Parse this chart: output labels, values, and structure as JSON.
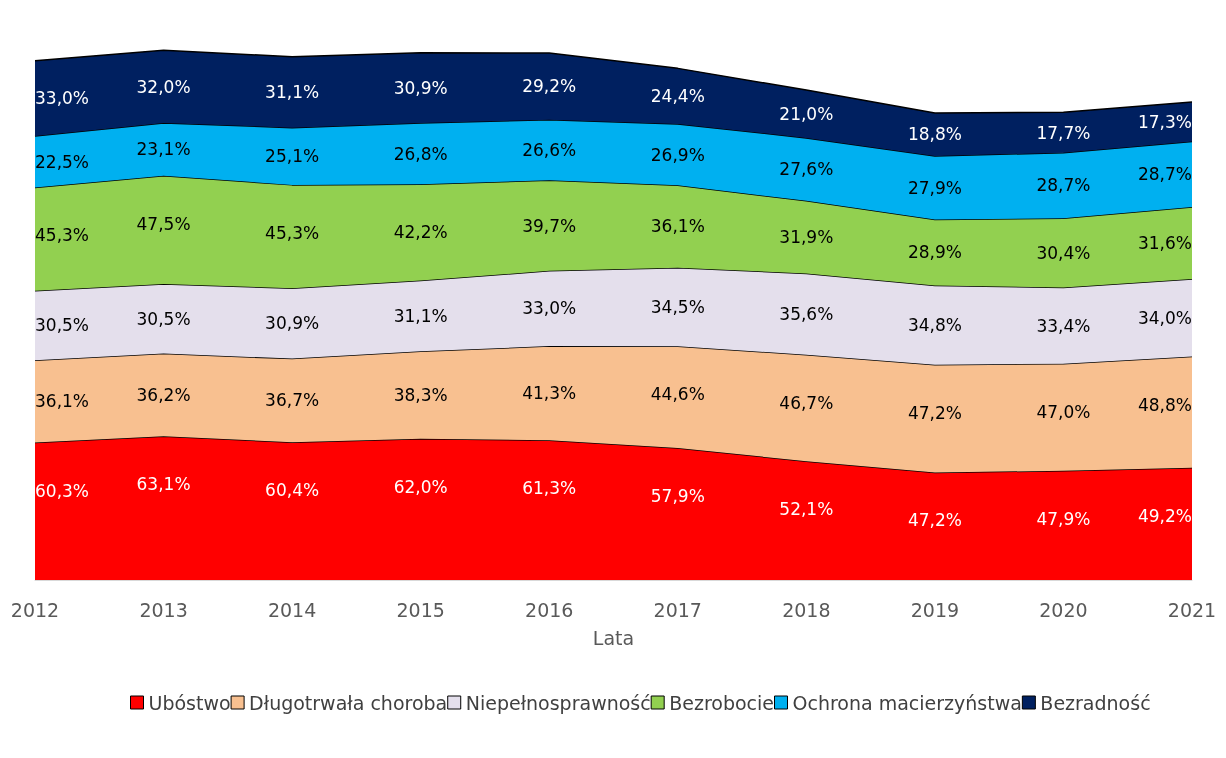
{
  "chart_data": {
    "type": "area",
    "stacked": true,
    "xlabel": "Lata",
    "legend": "bottom",
    "data_labels": false,
    "categories": [
      "2012",
      "2013",
      "2014",
      "2015",
      "2016",
      "2017",
      "2018",
      "2019",
      "2020",
      "2021"
    ],
    "series": [
      {
        "name": "Ubóstwo",
        "color": "#ff0000",
        "values": [
          60.3,
          63.1,
          60.4,
          62.0,
          61.3,
          57.9,
          52.1,
          47.2,
          47.9,
          49.2
        ],
        "value_labels": [
          "60,3%",
          "63,1%",
          "60,4%",
          "62,0%",
          "61,3%",
          "57,9%",
          "52,1%",
          "47,2%",
          "47,9%",
          "49,2%"
        ]
      },
      {
        "name": "Długotrwała choroba",
        "color": "#f8c090",
        "values": [
          36.1,
          36.2,
          36.7,
          38.3,
          41.3,
          44.6,
          46.7,
          47.2,
          47.0,
          48.8
        ],
        "value_labels": [
          "36,1%",
          "36,2%",
          "36,7%",
          "38,3%",
          "41,3%",
          "44,6%",
          "46,7%",
          "47,2%",
          "47,0%",
          "48,8%"
        ]
      },
      {
        "name": "Niepełnosprawność",
        "color": "#e4dfec",
        "values": [
          30.5,
          30.5,
          30.9,
          31.1,
          33.0,
          34.5,
          35.6,
          34.8,
          33.4,
          34.0
        ],
        "value_labels": [
          "30,5%",
          "30,5%",
          "30,9%",
          "31,1%",
          "33,0%",
          "34,5%",
          "35,6%",
          "34,8%",
          "33,4%",
          "34,0%"
        ]
      },
      {
        "name": "Bezrobocie",
        "color": "#92d050",
        "values": [
          45.3,
          47.5,
          45.3,
          42.2,
          39.7,
          36.1,
          31.9,
          28.9,
          30.4,
          31.6
        ],
        "value_labels": [
          "45,3%",
          "47,5%",
          "45,3%",
          "42,2%",
          "39,7%",
          "36,1%",
          "31,9%",
          "28,9%",
          "30,4%",
          "31,6%"
        ]
      },
      {
        "name": "Ochrona macierzyństwa",
        "color": "#00b0f0",
        "values": [
          22.5,
          23.1,
          25.1,
          26.8,
          26.6,
          26.9,
          27.6,
          27.9,
          28.7,
          28.7
        ],
        "value_labels": [
          "22,5%",
          "23,1%",
          "25,1%",
          "26,8%",
          "26,6%",
          "26,9%",
          "27,6%",
          "27,9%",
          "28,7%",
          "28,7%"
        ]
      },
      {
        "name": "Bezradność",
        "color": "#002060",
        "values": [
          33.0,
          32.0,
          31.1,
          30.9,
          29.2,
          24.4,
          21.0,
          18.8,
          17.7,
          17.3
        ],
        "value_labels": [
          "33,0%",
          "32,0%",
          "31,1%",
          "30,9%",
          "29,2%",
          "24,4%",
          "21,0%",
          "18,8%",
          "17,7%",
          "17,3%"
        ]
      }
    ]
  }
}
